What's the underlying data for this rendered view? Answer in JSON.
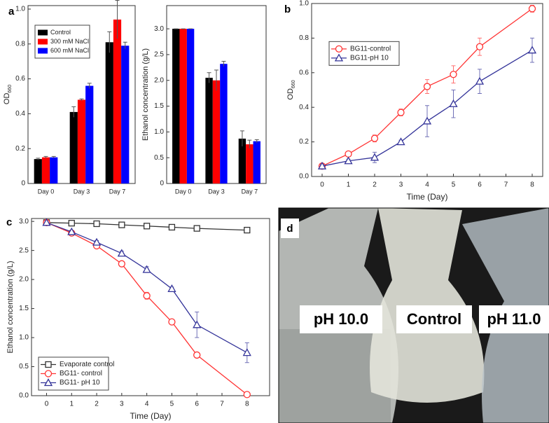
{
  "chart_data": [
    {
      "type": "bar",
      "panel": "a",
      "y_label": {
        "main": "OD",
        "sub": "660"
      },
      "categories": [
        "Day 0",
        "Day 3",
        "Day 7"
      ],
      "series": [
        {
          "name": "Control",
          "color": "#000000",
          "values": [
            0.14,
            0.41,
            0.81
          ],
          "errors": [
            0.005,
            0.03,
            0.06
          ]
        },
        {
          "name": "300 mM NaCl",
          "color": "#ff0000",
          "values": [
            0.15,
            0.48,
            0.94
          ],
          "errors": [
            0.005,
            0.005,
            0.11
          ]
        },
        {
          "name": "600 mM NaCl",
          "color": "#0000ff",
          "values": [
            0.15,
            0.56,
            0.79
          ],
          "errors": [
            0.005,
            0.015,
            0.02
          ]
        }
      ],
      "ylim": [
        0,
        1.02
      ],
      "yticks": [
        0,
        0.2,
        0.4,
        0.6,
        0.8,
        {
          "value": 1,
          "label": "1.0"
        }
      ],
      "legend": "upper left"
    },
    {
      "type": "bar",
      "y_label": "Ethanol concentration (g/L)",
      "categories": [
        "Day 0",
        "Day 3",
        "Day 7"
      ],
      "series": [
        {
          "color": "#000000",
          "values": [
            3,
            2.05,
            0.87
          ],
          "errors": [
            0,
            0.1,
            0.15
          ]
        },
        {
          "color": "#ff0000",
          "values": [
            3,
            2.0,
            0.76
          ],
          "errors": [
            0,
            0.2,
            0.08
          ]
        },
        {
          "color": "#0000ff",
          "values": [
            3,
            2.32,
            0.82
          ],
          "errors": [
            0,
            0.05,
            0.03
          ]
        }
      ],
      "ylim": [
        0,
        3.45
      ],
      "yticks": [
        0,
        0.5,
        {
          "value": 1,
          "label": "1.0"
        },
        1.5,
        {
          "value": 2,
          "label": "2.0"
        },
        2.5,
        {
          "value": 3,
          "label": "3.0"
        }
      ]
    },
    {
      "type": "line",
      "panel": "b",
      "y_label": {
        "main": "OD",
        "sub": "660"
      },
      "x_label": "Time (Day)",
      "x": [
        0,
        1,
        2,
        3,
        4,
        5,
        6,
        8
      ],
      "series": [
        {
          "name": "BG11-control",
          "color": "#ff3333",
          "marker": "circle",
          "values": [
            0.06,
            0.13,
            0.22,
            0.37,
            0.52,
            0.59,
            0.75,
            0.97
          ],
          "errors": [
            0.01,
            0.01,
            0.02,
            0.02,
            0.04,
            0.05,
            0.05,
            0.02
          ]
        },
        {
          "name": "BG11-pH 10",
          "color": "#333399",
          "marker": "triangle",
          "values": [
            0.06,
            0.09,
            0.11,
            0.2,
            0.32,
            0.42,
            0.55,
            0.73
          ],
          "errors": [
            0.01,
            0.01,
            0.03,
            0.01,
            0.09,
            0.08,
            0.07,
            0.07
          ]
        }
      ],
      "xlim": [
        -0.4,
        8.4
      ],
      "xticks": [
        0,
        1,
        2,
        3,
        4,
        5,
        6,
        7,
        8
      ],
      "ylim": [
        0,
        1
      ],
      "yticks": [
        {
          "value": 0,
          "label": "0.0"
        },
        0.2,
        0.4,
        0.6,
        0.8,
        {
          "value": 1,
          "label": "1.0"
        }
      ],
      "legend": "center left"
    },
    {
      "type": "line",
      "panel": "c",
      "y_label": "Ethanol concentration (g/L)",
      "x_label": "Time (Day)",
      "x": [
        0,
        1,
        2,
        3,
        4,
        5,
        6,
        8
      ],
      "series": [
        {
          "name": "Evaporate control",
          "color": "#333333",
          "marker": "square",
          "values": [
            2.98,
            2.97,
            2.96,
            2.94,
            2.92,
            2.9,
            2.88,
            2.85
          ],
          "errors": [
            0.01,
            0.01,
            0.01,
            0.01,
            0.01,
            0.01,
            0.01,
            0.01
          ]
        },
        {
          "name": "BG11- control",
          "color": "#ff3333",
          "marker": "circle",
          "values": [
            2.98,
            2.8,
            2.58,
            2.27,
            1.72,
            1.27,
            0.7,
            0.02
          ],
          "errors": [
            0.01,
            0.02,
            0.02,
            0.03,
            0.06,
            0.03,
            0.03,
            0.02
          ]
        },
        {
          "name": "BG11- pH 10",
          "color": "#333399",
          "marker": "triangle",
          "values": [
            2.98,
            2.82,
            2.64,
            2.45,
            2.17,
            1.84,
            1.22,
            0.74
          ],
          "errors": [
            0.01,
            0.02,
            0.03,
            0.04,
            0.05,
            0.03,
            0.22,
            0.17
          ]
        }
      ],
      "xlim": [
        -0.6,
        8.9
      ],
      "xticks": [
        0,
        1,
        2,
        3,
        4,
        5,
        6,
        7,
        8
      ],
      "ylim": [
        0,
        3.05
      ],
      "yticks": [
        {
          "value": 0,
          "label": "0.0"
        },
        0.5,
        {
          "value": 1,
          "label": "1.0"
        },
        1.5,
        {
          "value": 2,
          "label": "2.0"
        },
        2.5,
        {
          "value": 3,
          "label": "3.0"
        }
      ],
      "legend": "lower left"
    }
  ],
  "photo": {
    "panel": "d",
    "labels": [
      "pH 10.0",
      "Control",
      "pH 11.0"
    ]
  }
}
